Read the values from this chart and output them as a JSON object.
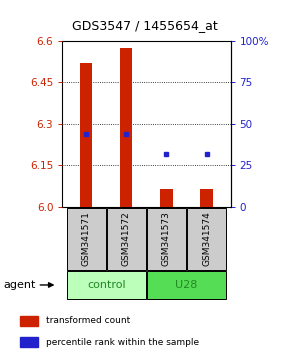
{
  "title": "GDS3547 / 1455654_at",
  "samples": [
    "GSM341571",
    "GSM341572",
    "GSM341573",
    "GSM341574"
  ],
  "groups": [
    "control",
    "control",
    "U28",
    "U28"
  ],
  "bar_bottoms": [
    6.0,
    6.0,
    6.0,
    6.0
  ],
  "bar_tops": [
    6.52,
    6.575,
    6.065,
    6.065
  ],
  "percentile_values": [
    6.265,
    6.265,
    6.19,
    6.19
  ],
  "ylim": [
    6.0,
    6.6
  ],
  "yticks": [
    6.0,
    6.15,
    6.3,
    6.45,
    6.6
  ],
  "right_ytick_pcts": [
    0,
    25,
    50,
    75,
    100
  ],
  "right_ytick_labels": [
    "0",
    "25",
    "50",
    "75",
    "100%"
  ],
  "bar_color": "#cc2200",
  "dot_color": "#2222cc",
  "left_tick_color": "#cc2200",
  "right_tick_color": "#2222cc",
  "group_colors": {
    "control": "#bbffbb",
    "U28": "#55dd55"
  },
  "group_label_color": "#228822",
  "sample_box_color": "#cccccc",
  "agent_label": "agent",
  "legend_items": [
    {
      "color": "#cc2200",
      "label": "transformed count"
    },
    {
      "color": "#2222cc",
      "label": "percentile rank within the sample"
    }
  ],
  "bar_width": 0.55
}
